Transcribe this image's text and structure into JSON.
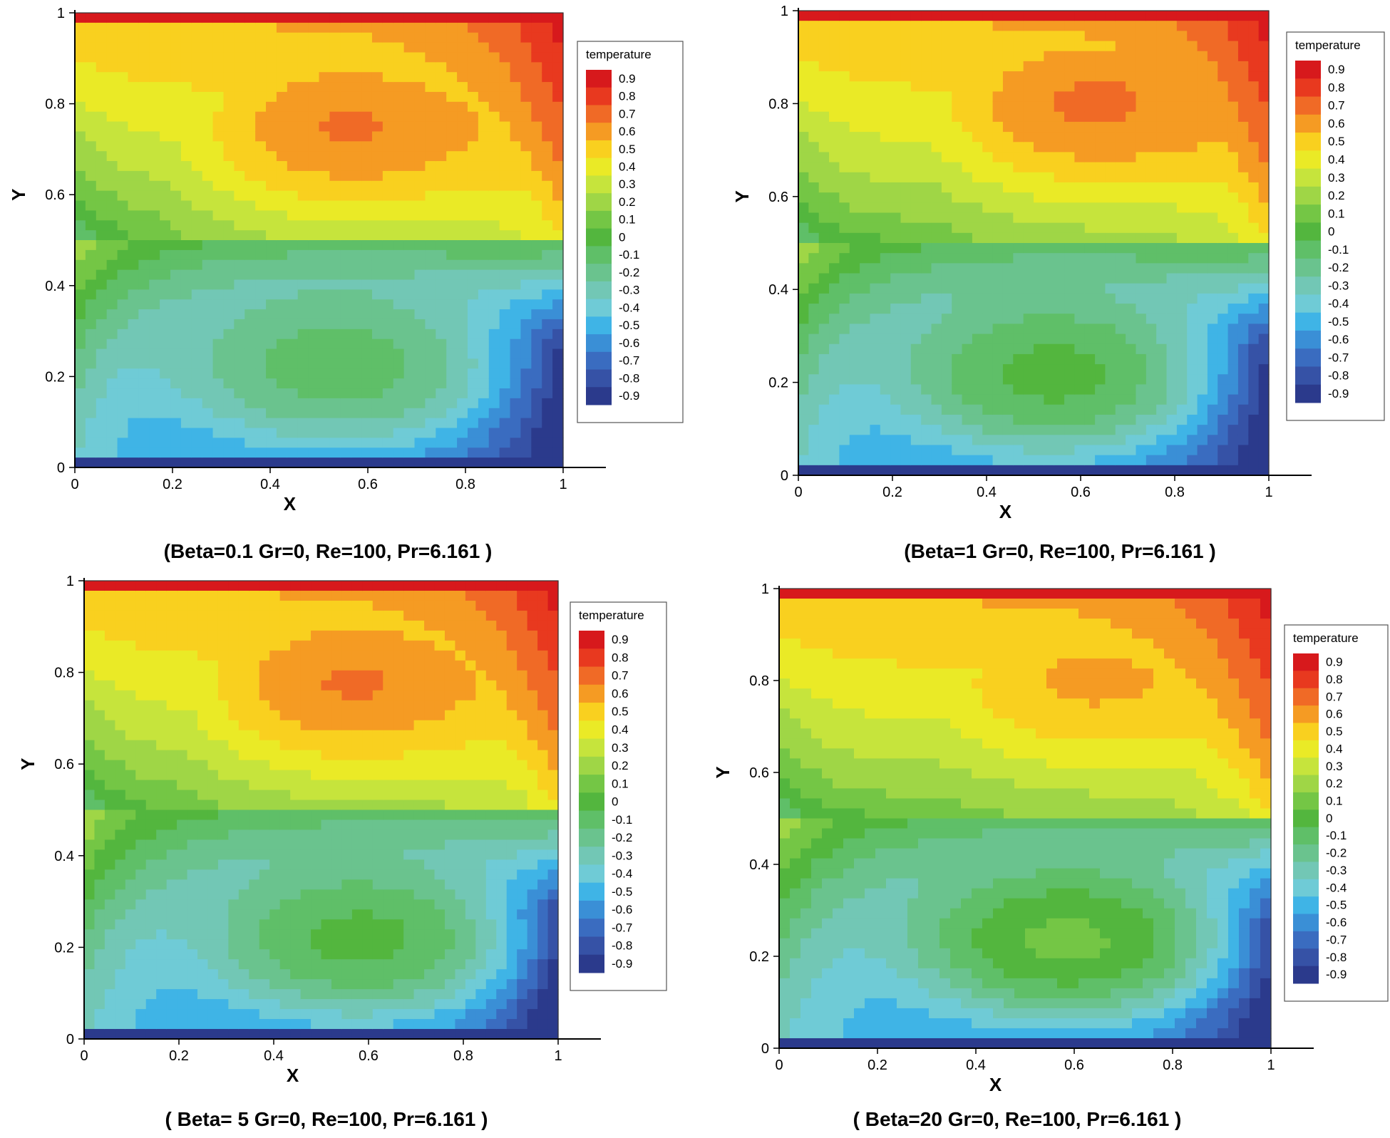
{
  "chart_data": [
    {
      "type": "heatmap",
      "title": "",
      "caption": "(Beta=0.1  Gr=0, Re=100, Pr=6.161 )",
      "xlabel": "X",
      "ylabel": "Y",
      "xlim": [
        0,
        1
      ],
      "ylim": [
        0,
        1
      ],
      "x_ticks": [
        "0",
        "0.2",
        "0.4",
        "0.6",
        "0.8",
        "1"
      ],
      "y_ticks": [
        "0",
        "0.2",
        "0.4",
        "0.6",
        "0.8",
        "1"
      ],
      "legend_title": "temperature",
      "legend_levels": [
        "0.9",
        "0.8",
        "0.7",
        "0.6",
        "0.5",
        "0.4",
        "0.3",
        "0.2",
        "0.1",
        "0",
        "-0.1",
        "-0.2",
        "-0.3",
        "-0.4",
        "-0.5",
        "-0.6",
        "-0.7",
        "-0.8",
        "-0.9"
      ],
      "upper_cell_center": [
        0.55,
        0.75
      ],
      "lower_cell_center": [
        0.55,
        0.2
      ],
      "upper_cell_temperature": 0.65,
      "lower_cell_temperature": 0.05
    },
    {
      "type": "heatmap",
      "title": "",
      "caption": "(Beta=1  Gr=0, Re=100, Pr=6.161 )",
      "xlabel": "X",
      "ylabel": "Y",
      "xlim": [
        0,
        1
      ],
      "ylim": [
        0,
        1
      ],
      "x_ticks": [
        "0",
        "0.2",
        "0.4",
        "0.6",
        "0.8",
        "1"
      ],
      "y_ticks": [
        "0",
        "0.2",
        "0.4",
        "0.6",
        "0.8",
        "1"
      ],
      "legend_title": "temperature",
      "legend_levels": [
        "0.9",
        "0.8",
        "0.7",
        "0.6",
        "0.5",
        "0.4",
        "0.3",
        "0.2",
        "0.1",
        "0",
        "-0.1",
        "-0.2",
        "-0.3",
        "-0.4",
        "-0.5",
        "-0.6",
        "-0.7",
        "-0.8",
        "-0.9"
      ],
      "upper_cell_center": [
        0.6,
        0.8
      ],
      "lower_cell_center": [
        0.55,
        0.2
      ],
      "upper_cell_temperature": 0.65,
      "lower_cell_temperature": 0.15
    },
    {
      "type": "heatmap",
      "title": "",
      "caption": "( Beta= 5  Gr=0, Re=100, Pr=6.161 )",
      "xlabel": "X",
      "ylabel": "Y",
      "xlim": [
        0,
        1
      ],
      "ylim": [
        0,
        1
      ],
      "x_ticks": [
        "0",
        "0.2",
        "0.4",
        "0.6",
        "0.8",
        "1"
      ],
      "y_ticks": [
        "0",
        "0.2",
        "0.4",
        "0.6",
        "0.8",
        "1"
      ],
      "legend_title": "temperature",
      "legend_levels": [
        "0.9",
        "0.8",
        "0.7",
        "0.6",
        "0.5",
        "0.4",
        "0.3",
        "0.2",
        "0.1",
        "0",
        "-0.1",
        "-0.2",
        "-0.3",
        "-0.4",
        "-0.5",
        "-0.6",
        "-0.7",
        "-0.8",
        "-0.9"
      ],
      "upper_cell_center": [
        0.55,
        0.78
      ],
      "lower_cell_center": [
        0.6,
        0.2
      ],
      "upper_cell_temperature": 0.65,
      "lower_cell_temperature": 0.15
    },
    {
      "type": "heatmap",
      "title": "",
      "caption": "( Beta=20  Gr=0, Re=100, Pr=6.161 )",
      "xlabel": "X",
      "ylabel": "Y",
      "xlim": [
        0,
        1
      ],
      "ylim": [
        0,
        1
      ],
      "x_ticks": [
        "0",
        "0.2",
        "0.4",
        "0.6",
        "0.8",
        "1"
      ],
      "y_ticks": [
        "0",
        "0.2",
        "0.4",
        "0.6",
        "0.8",
        "1"
      ],
      "legend_title": "temperature",
      "legend_levels": [
        "0.9",
        "0.8",
        "0.7",
        "0.6",
        "0.5",
        "0.4",
        "0.3",
        "0.2",
        "0.1",
        "0",
        "-0.1",
        "-0.2",
        "-0.3",
        "-0.4",
        "-0.5",
        "-0.6",
        "-0.7",
        "-0.8",
        "-0.9"
      ],
      "upper_cell_center": [
        0.6,
        0.8
      ],
      "lower_cell_center": [
        0.6,
        0.22
      ],
      "upper_cell_temperature": 0.55,
      "lower_cell_temperature": 0.25
    }
  ],
  "colors": {
    "level_colors": [
      "#d7191c",
      "#e8391f",
      "#f06a26",
      "#f59b23",
      "#f9d01f",
      "#eaea26",
      "#c6e43c",
      "#9fd646",
      "#74c645",
      "#53b63e",
      "#5fbf68",
      "#6ac38e",
      "#72c7b5",
      "#6fcbd6",
      "#3fb4e6",
      "#3a8fd6",
      "#3a6cc0",
      "#3652a6",
      "#2b3a8c"
    ]
  }
}
